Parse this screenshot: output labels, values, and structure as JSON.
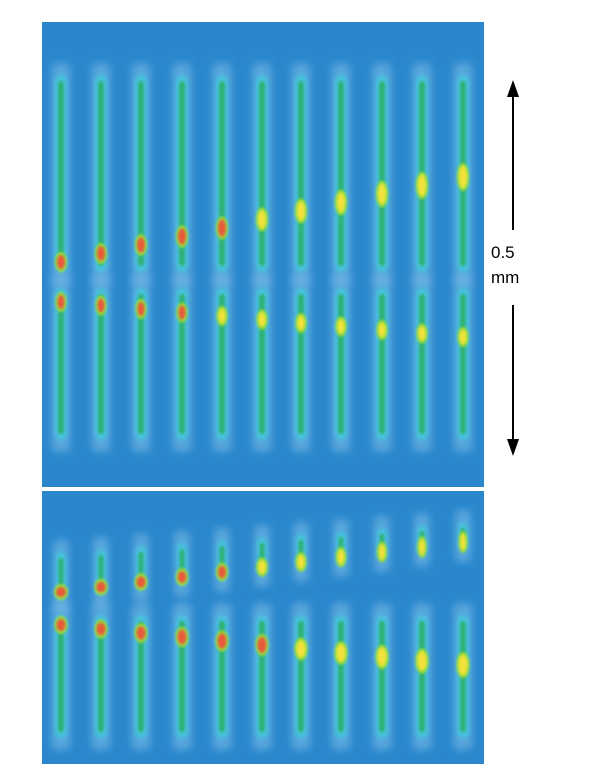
{
  "scale_bar": {
    "value": "0.5",
    "unit": "mm"
  }
}
